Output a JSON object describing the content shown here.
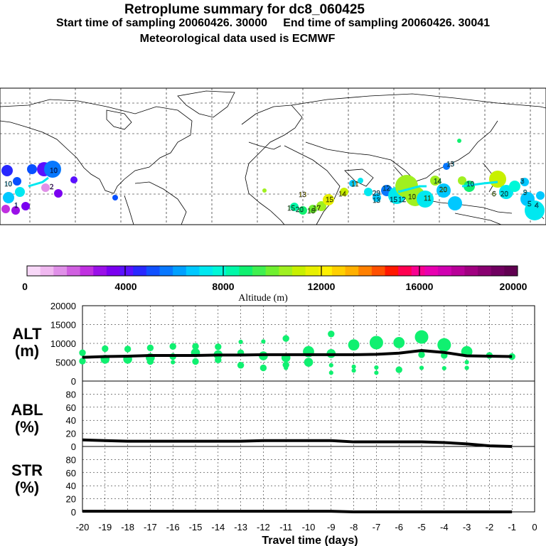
{
  "header": {
    "title": "Retroplume summary for dc8_060425",
    "sampling": "Start time of sampling 20060426. 30000     End time of sampling 20060426. 30041",
    "met": "Meteorological data used is ECMWF"
  },
  "colors": {
    "scale": [
      "#f8d8f8",
      "#f0b8f0",
      "#e090e8",
      "#d060e0",
      "#c030e0",
      "#9a10e8",
      "#7a00f0",
      "#5a10ff",
      "#2828ff",
      "#1050ff",
      "#0878ff",
      "#00a0ff",
      "#00c8ff",
      "#00e8f0",
      "#00f8d8",
      "#00f8a8",
      "#10f070",
      "#40f050",
      "#70f030",
      "#a0f020",
      "#c8f000",
      "#e8f000",
      "#fff000",
      "#ffd000",
      "#ffb000",
      "#ff8000",
      "#ff5000",
      "#ff1800",
      "#ff0050",
      "#f80090",
      "#e800b0",
      "#d000b0",
      "#b80098",
      "#a00080",
      "#880070",
      "#700060",
      "#600050"
    ],
    "plume": "#10f070",
    "line": "#000000"
  },
  "map": {
    "labels": [
      {
        "text": "10",
        "color": "#0850ff"
      },
      {
        "text": "10",
        "color": "#00c8ff"
      },
      {
        "text": "2",
        "color": "#7a00f0"
      },
      {
        "text": "1",
        "color": "#0850ff"
      },
      {
        "text": "15",
        "color": "#40f050"
      },
      {
        "text": "13",
        "color": "#fff000"
      },
      {
        "text": "14",
        "color": "#e8f000"
      },
      {
        "text": "20",
        "color": "#00f8a8"
      },
      {
        "text": "16",
        "color": "#70f030"
      },
      {
        "text": "17",
        "color": "#a0f020"
      },
      {
        "text": "15",
        "color": "#c8f000"
      },
      {
        "text": "11",
        "color": "#e8f000"
      },
      {
        "text": "29",
        "color": "#00c8ff"
      },
      {
        "text": "13",
        "color": "#00e8f0"
      },
      {
        "text": "12",
        "color": "#00e8f0"
      },
      {
        "text": "15",
        "color": "#00a0ff"
      },
      {
        "text": "12",
        "color": "#00c8ff"
      },
      {
        "text": "10",
        "color": "#a0f020"
      },
      {
        "text": "11",
        "color": "#a0f020"
      },
      {
        "text": "14",
        "color": "#10f070"
      },
      {
        "text": "20",
        "color": "#c8f000"
      },
      {
        "text": "10",
        "color": "#00c8ff"
      },
      {
        "text": "6",
        "color": "#a0f020"
      },
      {
        "text": "20",
        "color": "#00e8f0"
      },
      {
        "text": "9",
        "color": "#00e8f0"
      },
      {
        "text": "5",
        "color": "#00c8ff"
      },
      {
        "text": "4",
        "color": "#00c8ff"
      },
      {
        "text": "3",
        "color": "#00c8ff"
      },
      {
        "text": "13",
        "color": "#00c8ff"
      }
    ]
  },
  "colorbar": {
    "ticks": [
      "0",
      "4000",
      "8000",
      "12000",
      "16000",
      "20000"
    ],
    "label": "Altitude  (m)"
  },
  "chart_data": [
    {
      "type": "line",
      "name": "ALT",
      "panel_label": "ALT",
      "panel_unit": "(m)",
      "ylim": [
        0,
        20000
      ],
      "yticks": [
        "0",
        "5000",
        "10000",
        "15000",
        "20000"
      ],
      "x": [
        -20,
        -19,
        -18,
        -17,
        -16,
        -15,
        -14,
        -13,
        -12,
        -11,
        -10,
        -9,
        -8,
        -7,
        -6,
        -5,
        -4,
        -3,
        -2,
        -1
      ],
      "xlim": [
        -20,
        0
      ],
      "series": [
        {
          "name": "mean altitude",
          "values": [
            6300,
            6500,
            6600,
            6800,
            6800,
            6800,
            6900,
            6900,
            7000,
            7000,
            7000,
            7000,
            7000,
            7100,
            7400,
            8100,
            7600,
            6700,
            6600,
            6500
          ]
        }
      ],
      "scatter": [
        {
          "x": -20,
          "y": 7500,
          "s": 2
        },
        {
          "x": -20,
          "y": 5300,
          "s": 2
        },
        {
          "x": -19,
          "y": 8600,
          "s": 2
        },
        {
          "x": -19,
          "y": 5800,
          "s": 3
        },
        {
          "x": -18,
          "y": 8500,
          "s": 2
        },
        {
          "x": -18,
          "y": 5800,
          "s": 3
        },
        {
          "x": -17,
          "y": 8800,
          "s": 2
        },
        {
          "x": -17,
          "y": 6200,
          "s": 3
        },
        {
          "x": -17,
          "y": 5200,
          "s": 2
        },
        {
          "x": -16,
          "y": 9200,
          "s": 2
        },
        {
          "x": -16,
          "y": 6500,
          "s": 2
        },
        {
          "x": -16,
          "y": 5000,
          "s": 1
        },
        {
          "x": -15,
          "y": 9200,
          "s": 2
        },
        {
          "x": -15,
          "y": 7500,
          "s": 3
        },
        {
          "x": -15,
          "y": 5200,
          "s": 2
        },
        {
          "x": -14,
          "y": 9100,
          "s": 2
        },
        {
          "x": -14,
          "y": 7000,
          "s": 3
        },
        {
          "x": -14,
          "y": 5600,
          "s": 2
        },
        {
          "x": -13,
          "y": 10400,
          "s": 1
        },
        {
          "x": -13,
          "y": 7500,
          "s": 2
        },
        {
          "x": -13,
          "y": 4200,
          "s": 2
        },
        {
          "x": -12,
          "y": 10500,
          "s": 1
        },
        {
          "x": -12,
          "y": 6700,
          "s": 3
        },
        {
          "x": -12,
          "y": 3500,
          "s": 2
        },
        {
          "x": -11,
          "y": 11300,
          "s": 2
        },
        {
          "x": -11,
          "y": 6200,
          "s": 3
        },
        {
          "x": -11,
          "y": 4300,
          "s": 2
        },
        {
          "x": -11,
          "y": 3500,
          "s": 1
        },
        {
          "x": -10,
          "y": 7800,
          "s": 4
        },
        {
          "x": -10,
          "y": 5000,
          "s": 3
        },
        {
          "x": -9,
          "y": 12500,
          "s": 2
        },
        {
          "x": -9,
          "y": 7300,
          "s": 3
        },
        {
          "x": -9,
          "y": 4200,
          "s": 1
        },
        {
          "x": -9,
          "y": 2200,
          "s": 1
        },
        {
          "x": -8,
          "y": 9600,
          "s": 4
        },
        {
          "x": -8,
          "y": 3800,
          "s": 1
        },
        {
          "x": -8,
          "y": 2800,
          "s": 1
        },
        {
          "x": -7,
          "y": 10200,
          "s": 5
        },
        {
          "x": -7,
          "y": 3600,
          "s": 1
        },
        {
          "x": -7,
          "y": 2200,
          "s": 1
        },
        {
          "x": -6,
          "y": 10200,
          "s": 4
        },
        {
          "x": -6,
          "y": 3000,
          "s": 2
        },
        {
          "x": -5,
          "y": 11700,
          "s": 5
        },
        {
          "x": -5,
          "y": 7000,
          "s": 2
        },
        {
          "x": -5,
          "y": 3500,
          "s": 1
        },
        {
          "x": -4,
          "y": 9600,
          "s": 5
        },
        {
          "x": -4,
          "y": 6800,
          "s": 2
        },
        {
          "x": -4,
          "y": 3400,
          "s": 1
        },
        {
          "x": -3,
          "y": 7800,
          "s": 4
        },
        {
          "x": -3,
          "y": 5000,
          "s": 1
        },
        {
          "x": -3,
          "y": 3500,
          "s": 1
        },
        {
          "x": -2,
          "y": 6800,
          "s": 2
        },
        {
          "x": -1,
          "y": 6500,
          "s": 2
        }
      ]
    },
    {
      "type": "line",
      "name": "ABL",
      "panel_label": "ABL",
      "panel_unit": "(%)",
      "ylim": [
        0,
        100
      ],
      "yticks": [
        "0",
        "20",
        "40",
        "60",
        "80"
      ],
      "x": [
        -20,
        -19,
        -18,
        -17,
        -16,
        -15,
        -14,
        -13,
        -12,
        -11,
        -10,
        -9,
        -8,
        -7,
        -6,
        -5,
        -4,
        -3,
        -2,
        -1
      ],
      "series": [
        {
          "name": "ABL fraction",
          "values": [
            10,
            9,
            8,
            8,
            8,
            8,
            8,
            8,
            9,
            9,
            9,
            9,
            7,
            7,
            7,
            7,
            6,
            4,
            1,
            0
          ]
        }
      ]
    },
    {
      "type": "line",
      "name": "STR",
      "panel_label": "STR",
      "panel_unit": "(%)",
      "ylim": [
        0,
        100
      ],
      "yticks": [
        "0",
        "20",
        "40",
        "60",
        "80"
      ],
      "x": [
        -20,
        -19,
        -18,
        -17,
        -16,
        -15,
        -14,
        -13,
        -12,
        -11,
        -10,
        -9,
        -8,
        -7,
        -6,
        -5,
        -4,
        -3,
        -2,
        -1
      ],
      "series": [
        {
          "name": "STR fraction",
          "values": [
            1,
            1,
            1,
            1,
            1,
            1,
            1,
            1,
            1,
            1,
            1,
            1,
            0,
            0,
            0,
            0,
            0,
            0,
            0,
            0
          ]
        }
      ]
    }
  ],
  "xaxis": {
    "ticks": [
      "-20",
      "-19",
      "-18",
      "-17",
      "-16",
      "-15",
      "-14",
      "-13",
      "-12",
      "-11",
      "-10",
      "-9",
      "-8",
      "-7",
      "-6",
      "-5",
      "-4",
      "-3",
      "-2",
      "-1",
      "0"
    ],
    "label": "Travel time (days)"
  }
}
